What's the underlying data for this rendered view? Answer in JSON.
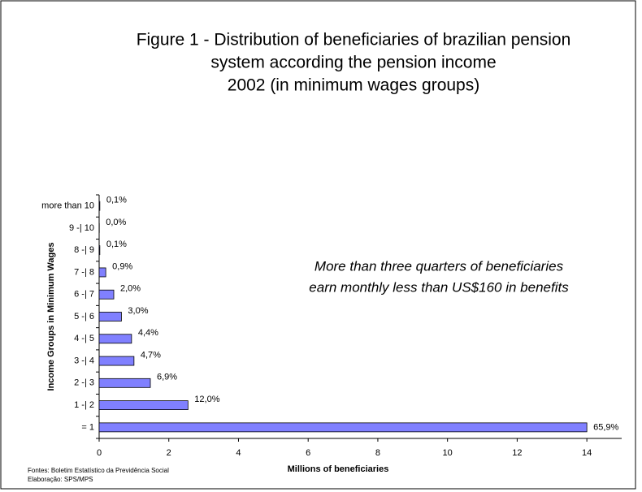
{
  "chart_data": {
    "type": "bar",
    "orientation": "horizontal",
    "title": [
      "Figure 1 - Distribution of beneficiaries of brazilian pension",
      "system according the pension income",
      "2002 (in minimum wages groups)"
    ],
    "categories": [
      "more than 10",
      "9 -| 10",
      "8 -| 9",
      "7 -| 8",
      "6 -| 7",
      "5 -| 6",
      "4 -| 5",
      "3 -| 4",
      "2 -| 3",
      "1 -| 2",
      "= 1"
    ],
    "values": [
      0.02,
      0.005,
      0.02,
      0.19,
      0.42,
      0.64,
      0.93,
      1.0,
      1.47,
      2.55,
      14.0
    ],
    "bar_labels": [
      "0,1%",
      "0,0%",
      "0,1%",
      "0,9%",
      "2,0%",
      "3,0%",
      "4,4%",
      "4,7%",
      "6,9%",
      "12,0%",
      "65,9%"
    ],
    "color": "#8080ff",
    "xlim": [
      0,
      15
    ],
    "xticks": [
      0,
      2,
      4,
      6,
      8,
      10,
      12,
      14
    ],
    "xlabel": "Millions of beneficiaries",
    "ylabel": "Income Groups in Minimum  Wages",
    "annotation": [
      "More than three quarters of beneficiaries",
      "earn monthly less than US$160 in benefits"
    ],
    "sources": [
      "Fontes: Boletim Estatístico da Previdência Social",
      "Elaboração: SPS/MPS"
    ]
  }
}
